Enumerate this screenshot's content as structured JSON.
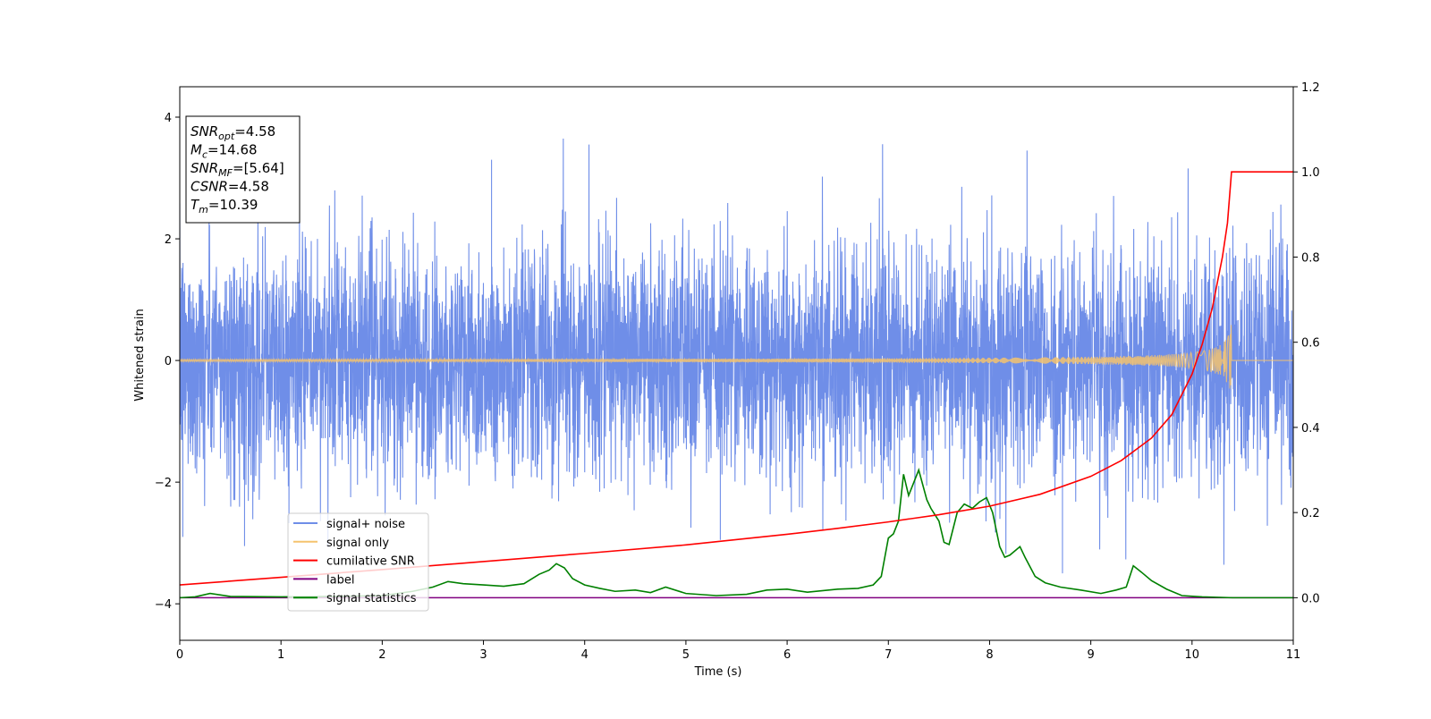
{
  "chart_data": {
    "type": "line",
    "xlabel": "Time (s)",
    "ylabel": "Whitened strain",
    "xlim": [
      0,
      11
    ],
    "ylim": [
      -4.6,
      4.5
    ],
    "y2lim": [
      -0.1,
      1.2
    ],
    "xticks": [
      "0",
      "1",
      "2",
      "3",
      "4",
      "5",
      "6",
      "7",
      "8",
      "9",
      "10",
      "11"
    ],
    "yticks": [
      "−4",
      "−2",
      "0",
      "2",
      "4"
    ],
    "y2ticks": [
      "0.0",
      "0.2",
      "0.4",
      "0.6",
      "0.8",
      "1.0",
      "1.2"
    ],
    "grid": false,
    "legend_position": "lower-left",
    "annotation": {
      "lines": [
        {
          "sym": "SNR",
          "sub": "opt",
          "value": "=4.58"
        },
        {
          "sym": "M",
          "sub": "c",
          "value": "=14.68"
        },
        {
          "sym": "SNR",
          "sub": "MF",
          "value": "=[5.64]"
        },
        {
          "sym": "CSNR",
          "sub": "",
          "value": "=4.58"
        },
        {
          "sym": "T",
          "sub": "m",
          "value": "=10.39"
        }
      ]
    },
    "series": [
      {
        "name": "signal+ noise",
        "color": "#6f8ee8",
        "axis": "left",
        "typical_amplitude": 1.5,
        "peak_points": [
          [
            3.08,
            3.3
          ],
          [
            8.37,
            3.45
          ],
          [
            8.72,
            -3.5
          ],
          [
            5.34,
            -2.95
          ],
          [
            0.64,
            -3.05
          ],
          [
            0.03,
            -2.9
          ]
        ]
      },
      {
        "name": "signal only",
        "color": "#f5c36e",
        "axis": "left",
        "merger_time": 10.39,
        "peak_amplitude": 0.62
      },
      {
        "name": "cumilative SNR",
        "color": "#ff0000",
        "axis": "right",
        "x": [
          0,
          1,
          2,
          3,
          4,
          5,
          6,
          6.5,
          7,
          7.5,
          8,
          8.5,
          9,
          9.3,
          9.6,
          9.8,
          10.0,
          10.1,
          10.2,
          10.3,
          10.35,
          10.39,
          11
        ],
        "y": [
          0.03,
          0.048,
          0.066,
          0.085,
          0.104,
          0.124,
          0.149,
          0.163,
          0.178,
          0.195,
          0.215,
          0.243,
          0.285,
          0.322,
          0.375,
          0.43,
          0.525,
          0.595,
          0.68,
          0.8,
          0.88,
          1.0,
          1.0
        ]
      },
      {
        "name": "label",
        "color": "#800080",
        "axis": "right",
        "x": [
          0,
          11
        ],
        "y": [
          0.0,
          0.0
        ]
      },
      {
        "name": "signal statistics",
        "color": "#008000",
        "axis": "right",
        "x": [
          0,
          0.15,
          0.3,
          0.5,
          1.0,
          1.5,
          2.0,
          2.3,
          2.5,
          2.65,
          2.8,
          3.0,
          3.2,
          3.4,
          3.55,
          3.65,
          3.72,
          3.8,
          3.88,
          4.0,
          4.15,
          4.3,
          4.5,
          4.65,
          4.8,
          5.0,
          5.3,
          5.6,
          5.8,
          6.0,
          6.2,
          6.5,
          6.7,
          6.85,
          6.93,
          7.0,
          7.05,
          7.1,
          7.15,
          7.2,
          7.25,
          7.3,
          7.38,
          7.42,
          7.5,
          7.55,
          7.6,
          7.68,
          7.75,
          7.83,
          7.9,
          7.97,
          8.03,
          8.1,
          8.15,
          8.2,
          8.3,
          8.35,
          8.45,
          8.55,
          8.7,
          8.9,
          9.1,
          9.25,
          9.35,
          9.42,
          9.5,
          9.6,
          9.75,
          9.9,
          10.1,
          10.4,
          10.7,
          11
        ],
        "y": [
          0.0,
          0.002,
          0.01,
          0.003,
          0.002,
          0.003,
          0.005,
          0.015,
          0.025,
          0.038,
          0.033,
          0.03,
          0.027,
          0.033,
          0.055,
          0.065,
          0.08,
          0.07,
          0.045,
          0.03,
          0.022,
          0.015,
          0.018,
          0.012,
          0.025,
          0.01,
          0.005,
          0.008,
          0.018,
          0.02,
          0.013,
          0.02,
          0.022,
          0.03,
          0.05,
          0.14,
          0.15,
          0.18,
          0.29,
          0.24,
          0.27,
          0.3,
          0.23,
          0.21,
          0.18,
          0.13,
          0.125,
          0.2,
          0.22,
          0.21,
          0.225,
          0.235,
          0.2,
          0.12,
          0.095,
          0.1,
          0.12,
          0.095,
          0.05,
          0.035,
          0.025,
          0.018,
          0.01,
          0.018,
          0.025,
          0.075,
          0.06,
          0.04,
          0.02,
          0.005,
          0.002,
          0.0,
          0.0,
          0.0
        ]
      }
    ]
  }
}
